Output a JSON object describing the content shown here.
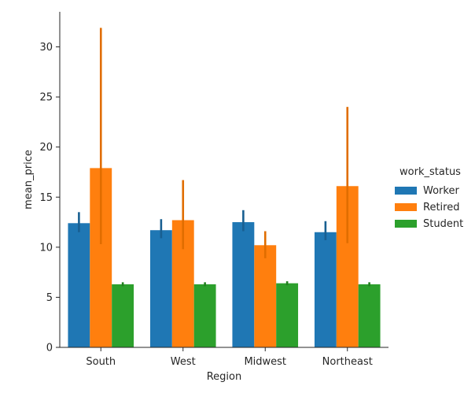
{
  "chart_data": {
    "type": "bar",
    "title": "",
    "xlabel": "Region",
    "ylabel": "mean_price",
    "categories": [
      "South",
      "West",
      "Midwest",
      "Northeast"
    ],
    "ylim": [
      0,
      33.5
    ],
    "yticks": [
      0,
      5,
      10,
      15,
      20,
      25,
      30
    ],
    "grid": false,
    "legend": {
      "title": "work_status",
      "placement": "right"
    },
    "series": [
      {
        "name": "Worker",
        "color": "#1f77b4",
        "values": [
          12.4,
          11.7,
          12.5,
          11.5
        ],
        "ci_low": [
          11.5,
          10.9,
          11.6,
          10.7
        ],
        "ci_high": [
          13.5,
          12.8,
          13.7,
          12.6
        ]
      },
      {
        "name": "Retired",
        "color": "#ff7f0e",
        "values": [
          17.9,
          12.7,
          10.2,
          16.1
        ],
        "ci_low": [
          10.3,
          9.8,
          8.9,
          10.4
        ],
        "ci_high": [
          31.9,
          16.7,
          11.6,
          24.0
        ]
      },
      {
        "name": "Student",
        "color": "#2ca02c",
        "values": [
          6.3,
          6.3,
          6.4,
          6.3
        ],
        "ci_low": [
          6.1,
          6.1,
          6.2,
          6.1
        ],
        "ci_high": [
          6.5,
          6.5,
          6.6,
          6.5
        ]
      }
    ]
  }
}
